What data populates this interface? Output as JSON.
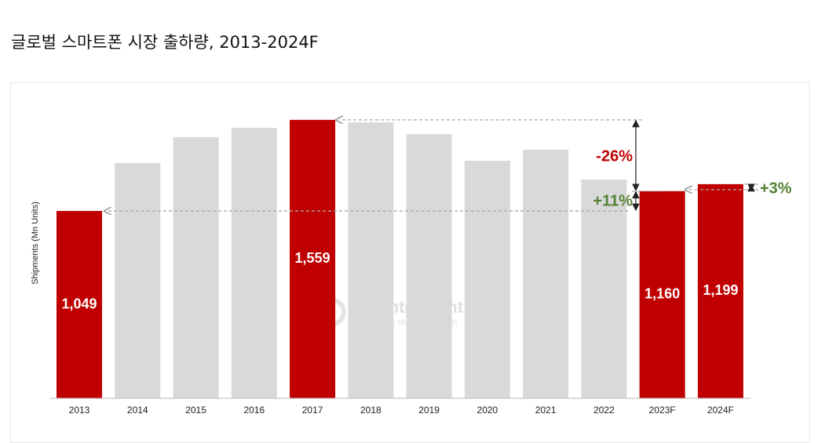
{
  "title": "글로벌 스마트폰 시장 출하량, 2013-2024F",
  "chart_data": {
    "type": "bar",
    "y_axis_label": "Shipments (Mn Units)",
    "categories": [
      "2013",
      "2014",
      "2015",
      "2016",
      "2017",
      "2018",
      "2019",
      "2020",
      "2021",
      "2022",
      "2023F",
      "2024F"
    ],
    "values": [
      1049,
      1317,
      1462,
      1514,
      1559,
      1545,
      1479,
      1330,
      1392,
      1225,
      1160,
      1199
    ],
    "value_labels": [
      "1,049",
      null,
      null,
      null,
      "1,559",
      null,
      null,
      null,
      null,
      null,
      "1,160",
      "1,199"
    ],
    "colors": [
      "#c00000",
      "#d9d9d9",
      "#d9d9d9",
      "#d9d9d9",
      "#c00000",
      "#d9d9d9",
      "#d9d9d9",
      "#d9d9d9",
      "#d9d9d9",
      "#d9d9d9",
      "#c00000",
      "#c00000"
    ],
    "annotations": [
      {
        "text": "-26%",
        "color": "#c00000"
      },
      {
        "text": "+11%",
        "color": "#548235"
      },
      {
        "text": "+3%",
        "color": "#548235"
      }
    ],
    "watermark": {
      "name": "Counterpoint",
      "tagline": "Technology Market Research"
    }
  }
}
